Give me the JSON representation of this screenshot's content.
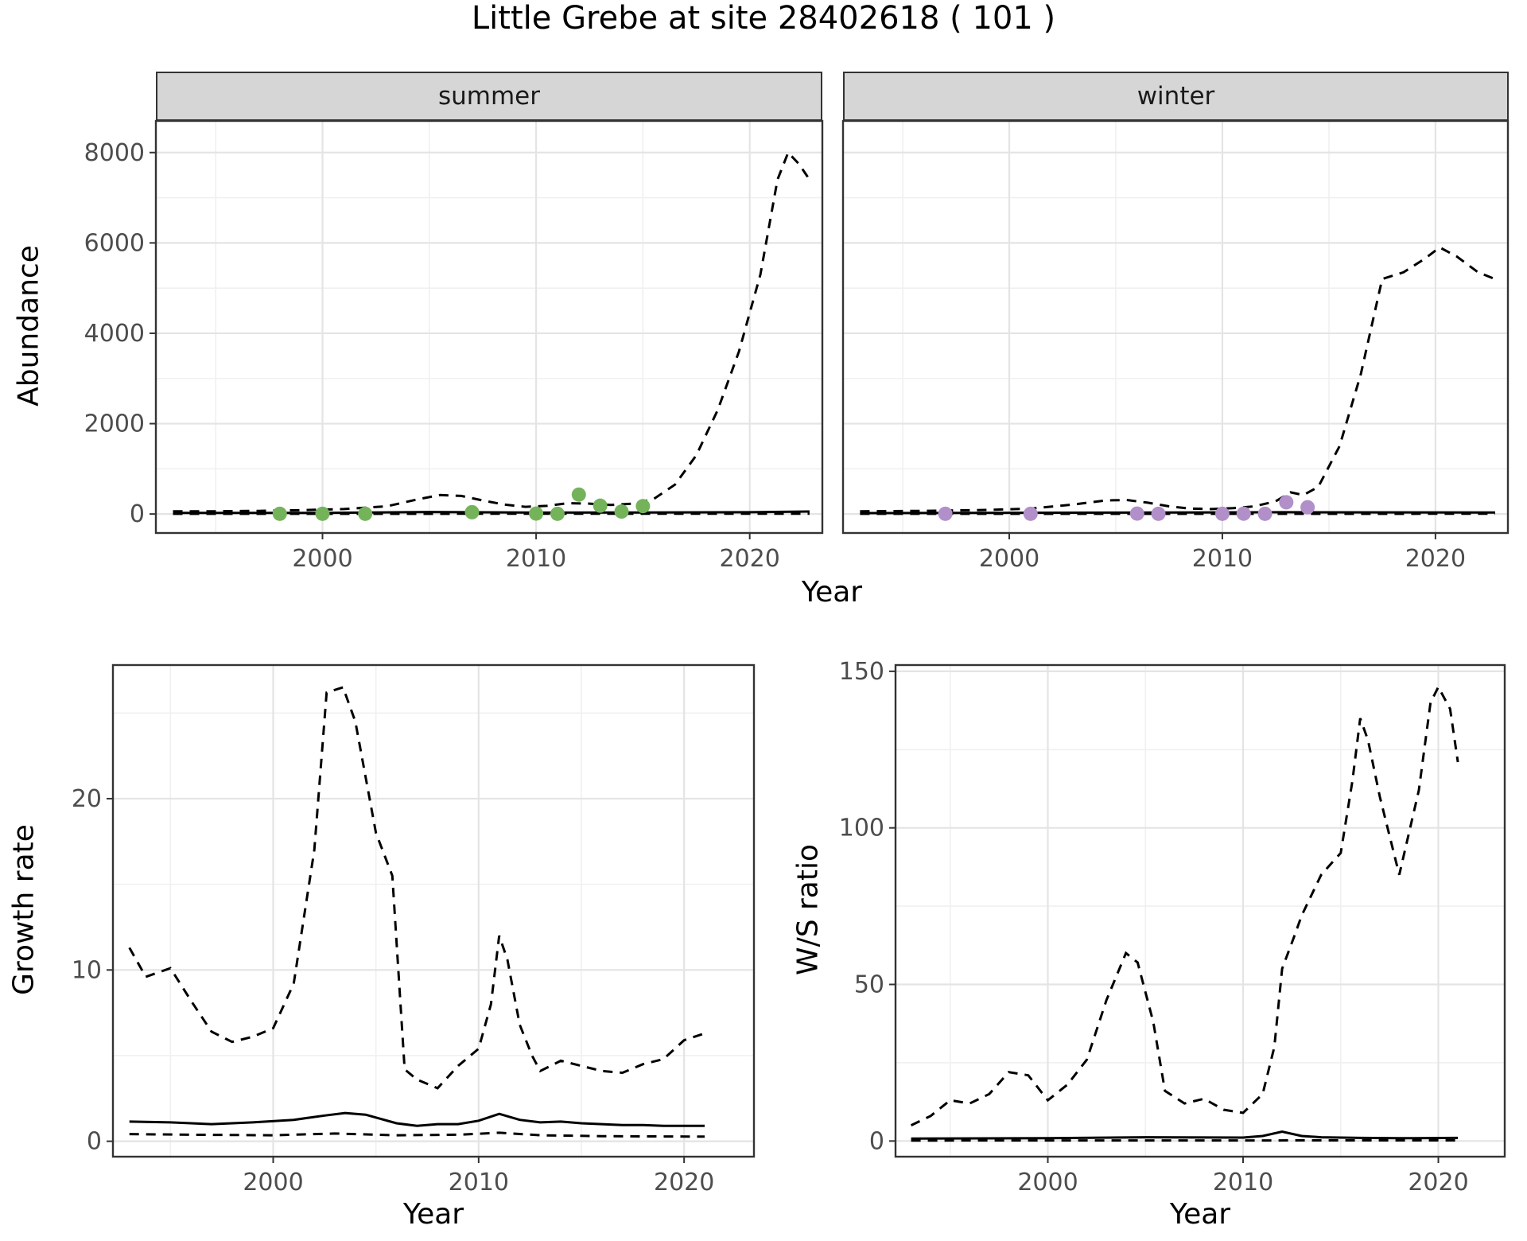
{
  "title": "Little Grebe at site 28402618 ( 101 )",
  "abundance": {
    "ylabel": "Abundance",
    "xlabel": "Year",
    "facets": [
      "summer",
      "winter"
    ]
  },
  "growth": {
    "ylabel": "Growth rate",
    "xlabel": "Year"
  },
  "ws": {
    "ylabel": "W/S ratio",
    "xlabel": "Year"
  },
  "colors": {
    "summer_points": "#75b35b",
    "winter_points": "#b18fc9",
    "line": "#000000",
    "strip_bg": "#d6d6d6",
    "grid_major": "#e4e4e4",
    "grid_minor": "#f0f0f0"
  },
  "chart_data": [
    {
      "type": "line",
      "title": "summer",
      "xlabel": "Year",
      "ylabel": "Abundance",
      "xlim": [
        1992.2,
        2023.4
      ],
      "ylim": [
        -420,
        8700
      ],
      "xticks": [
        2000,
        2010,
        2020
      ],
      "xticks_minor": [
        1995,
        2005,
        2015
      ],
      "yticks": [
        0,
        2000,
        4000,
        6000,
        8000
      ],
      "yticks_minor": [
        1000,
        3000,
        5000,
        7000
      ],
      "series": [
        {
          "name": "upper_95ci",
          "style": "dashed",
          "points": [
            [
              1993,
              60
            ],
            [
              1995,
              60
            ],
            [
              1997,
              70
            ],
            [
              1999,
              85
            ],
            [
              2001,
              110
            ],
            [
              2003,
              170
            ],
            [
              2004.5,
              330
            ],
            [
              2005.5,
              420
            ],
            [
              2006.5,
              400
            ],
            [
              2007.5,
              300
            ],
            [
              2008.5,
              210
            ],
            [
              2009.5,
              160
            ],
            [
              2010.5,
              180
            ],
            [
              2011.5,
              240
            ],
            [
              2012.5,
              230
            ],
            [
              2013.5,
              200
            ],
            [
              2014.5,
              230
            ],
            [
              2015.5,
              330
            ],
            [
              2016.5,
              650
            ],
            [
              2017.5,
              1300
            ],
            [
              2018.5,
              2300
            ],
            [
              2019.5,
              3600
            ],
            [
              2020.5,
              5300
            ],
            [
              2021.3,
              7400
            ],
            [
              2021.8,
              8000
            ],
            [
              2022.3,
              7750
            ],
            [
              2022.8,
              7400
            ]
          ]
        },
        {
          "name": "mean",
          "style": "solid",
          "points": [
            [
              1993,
              25
            ],
            [
              2000,
              25
            ],
            [
              2005,
              45
            ],
            [
              2010,
              30
            ],
            [
              2015,
              35
            ],
            [
              2020,
              40
            ],
            [
              2022.8,
              55
            ]
          ]
        },
        {
          "name": "lower_95ci",
          "style": "dashed",
          "points": [
            [
              1993,
              5
            ],
            [
              2022.8,
              8
            ]
          ]
        }
      ],
      "markers": {
        "name": "observed_counts_summer",
        "color": "#75b35b",
        "points": [
          [
            1998,
            5
          ],
          [
            2000,
            5
          ],
          [
            2002,
            5
          ],
          [
            2007,
            40
          ],
          [
            2010,
            10
          ],
          [
            2011,
            5
          ],
          [
            2012,
            430
          ],
          [
            2013,
            185
          ],
          [
            2014,
            55
          ],
          [
            2015,
            175
          ]
        ]
      }
    },
    {
      "type": "line",
      "title": "winter",
      "xlabel": "Year",
      "ylabel": "Abundance",
      "xlim": [
        1992.2,
        2023.4
      ],
      "ylim": [
        -420,
        8700
      ],
      "xticks": [
        2000,
        2010,
        2020
      ],
      "xticks_minor": [
        1995,
        2005,
        2015
      ],
      "yticks": [
        0,
        2000,
        4000,
        6000,
        8000
      ],
      "yticks_minor": [
        1000,
        3000,
        5000,
        7000
      ],
      "series": [
        {
          "name": "upper_95ci",
          "style": "dashed",
          "points": [
            [
              1993,
              60
            ],
            [
              1996,
              70
            ],
            [
              1999,
              90
            ],
            [
              2001,
              120
            ],
            [
              2003,
              210
            ],
            [
              2004.5,
              300
            ],
            [
              2005.5,
              310
            ],
            [
              2006.5,
              250
            ],
            [
              2007.5,
              170
            ],
            [
              2008.5,
              120
            ],
            [
              2009.5,
              110
            ],
            [
              2010.5,
              130
            ],
            [
              2011.5,
              170
            ],
            [
              2012.5,
              280
            ],
            [
              2013.2,
              480
            ],
            [
              2013.8,
              420
            ],
            [
              2014.5,
              600
            ],
            [
              2015.5,
              1500
            ],
            [
              2016.5,
              3100
            ],
            [
              2017.5,
              5200
            ],
            [
              2018.5,
              5350
            ],
            [
              2019.5,
              5650
            ],
            [
              2020.2,
              5900
            ],
            [
              2021,
              5700
            ],
            [
              2022,
              5350
            ],
            [
              2022.8,
              5200
            ]
          ]
        },
        {
          "name": "mean",
          "style": "solid",
          "points": [
            [
              1993,
              20
            ],
            [
              2005,
              30
            ],
            [
              2013,
              40
            ],
            [
              2022.8,
              35
            ]
          ]
        },
        {
          "name": "lower_95ci",
          "style": "dashed",
          "points": [
            [
              1993,
              5
            ],
            [
              2022.8,
              6
            ]
          ]
        }
      ],
      "markers": {
        "name": "observed_counts_winter",
        "color": "#b18fc9",
        "points": [
          [
            1997,
            5
          ],
          [
            2001,
            5
          ],
          [
            2006,
            10
          ],
          [
            2007,
            5
          ],
          [
            2010,
            5
          ],
          [
            2011,
            8
          ],
          [
            2012,
            5
          ],
          [
            2013,
            260
          ],
          [
            2014,
            150
          ]
        ]
      }
    },
    {
      "type": "line",
      "title": "Growth rate",
      "xlabel": "Year",
      "ylabel": "Growth rate",
      "xlim": [
        1992.2,
        2023.4
      ],
      "ylim": [
        -0.9,
        27.8
      ],
      "xticks": [
        2000,
        2010,
        2020
      ],
      "xticks_minor": [
        1995,
        2005,
        2015
      ],
      "yticks": [
        0,
        10,
        20
      ],
      "yticks_minor": [
        5,
        15,
        25
      ],
      "series": [
        {
          "name": "upper_95ci",
          "style": "dashed",
          "points": [
            [
              1993,
              11.3
            ],
            [
              1993.8,
              9.6
            ],
            [
              1995,
              10.1
            ],
            [
              1996,
              8.2
            ],
            [
              1997,
              6.4
            ],
            [
              1998,
              5.8
            ],
            [
              1999,
              6.1
            ],
            [
              2000,
              6.6
            ],
            [
              2001,
              9.2
            ],
            [
              2002,
              17
            ],
            [
              2002.6,
              26.2
            ],
            [
              2003.4,
              26.5
            ],
            [
              2004,
              24.5
            ],
            [
              2005,
              18
            ],
            [
              2005.8,
              15.5
            ],
            [
              2006.4,
              4.2
            ],
            [
              2007,
              3.6
            ],
            [
              2008,
              3.1
            ],
            [
              2009,
              4.4
            ],
            [
              2010,
              5.4
            ],
            [
              2010.6,
              8
            ],
            [
              2011,
              12
            ],
            [
              2011.4,
              10.6
            ],
            [
              2012,
              6.8
            ],
            [
              2012.6,
              5
            ],
            [
              2013,
              4.1
            ],
            [
              2014,
              4.7
            ],
            [
              2015,
              4.4
            ],
            [
              2016,
              4.1
            ],
            [
              2017,
              4.0
            ],
            [
              2018,
              4.5
            ],
            [
              2019,
              4.8
            ],
            [
              2020,
              5.9
            ],
            [
              2021,
              6.3
            ]
          ]
        },
        {
          "name": "mean",
          "style": "solid",
          "points": [
            [
              1993,
              1.15
            ],
            [
              1995,
              1.1
            ],
            [
              1997,
              1.0
            ],
            [
              1999,
              1.1
            ],
            [
              2001,
              1.25
            ],
            [
              2002.5,
              1.5
            ],
            [
              2003.5,
              1.65
            ],
            [
              2004.5,
              1.55
            ],
            [
              2006,
              1.05
            ],
            [
              2007,
              0.9
            ],
            [
              2008,
              1.0
            ],
            [
              2009,
              1.0
            ],
            [
              2010,
              1.2
            ],
            [
              2011,
              1.6
            ],
            [
              2012,
              1.25
            ],
            [
              2013,
              1.1
            ],
            [
              2014,
              1.15
            ],
            [
              2015,
              1.05
            ],
            [
              2016,
              1.0
            ],
            [
              2017,
              0.95
            ],
            [
              2018,
              0.95
            ],
            [
              2019,
              0.9
            ],
            [
              2020,
              0.9
            ],
            [
              2021,
              0.9
            ]
          ]
        },
        {
          "name": "lower_95ci",
          "style": "dashed",
          "points": [
            [
              1993,
              0.42
            ],
            [
              1996,
              0.38
            ],
            [
              2000,
              0.35
            ],
            [
              2003,
              0.45
            ],
            [
              2006,
              0.35
            ],
            [
              2009,
              0.38
            ],
            [
              2011,
              0.5
            ],
            [
              2013,
              0.35
            ],
            [
              2016,
              0.3
            ],
            [
              2019,
              0.28
            ],
            [
              2021,
              0.27
            ]
          ]
        }
      ]
    },
    {
      "type": "line",
      "title": "W/S ratio",
      "xlabel": "Year",
      "ylabel": "W/S ratio",
      "xlim": [
        1992.2,
        2023.4
      ],
      "ylim": [
        -5,
        152
      ],
      "xticks": [
        2000,
        2010,
        2020
      ],
      "xticks_minor": [
        1995,
        2005,
        2015
      ],
      "yticks": [
        0,
        50,
        100,
        150
      ],
      "yticks_minor": [
        25,
        75,
        125
      ],
      "series": [
        {
          "name": "upper_95ci",
          "style": "dashed",
          "points": [
            [
              1993,
              5
            ],
            [
              1994,
              8
            ],
            [
              1995,
              13
            ],
            [
              1996,
              12
            ],
            [
              1997,
              15
            ],
            [
              1998,
              22
            ],
            [
              1999,
              21
            ],
            [
              2000,
              13
            ],
            [
              2001,
              18
            ],
            [
              2002,
              26
            ],
            [
              2003,
              45
            ],
            [
              2004,
              60
            ],
            [
              2004.6,
              57
            ],
            [
              2005.4,
              38
            ],
            [
              2006,
              16
            ],
            [
              2007,
              12
            ],
            [
              2008,
              13.5
            ],
            [
              2009,
              10
            ],
            [
              2010,
              9
            ],
            [
              2011,
              15
            ],
            [
              2011.6,
              30
            ],
            [
              2012,
              55
            ],
            [
              2012.6,
              65
            ],
            [
              2013,
              72
            ],
            [
              2014,
              85
            ],
            [
              2015,
              92
            ],
            [
              2015.6,
              115
            ],
            [
              2016,
              135
            ],
            [
              2016.4,
              128
            ],
            [
              2017,
              110
            ],
            [
              2017.6,
              95
            ],
            [
              2018,
              85
            ],
            [
              2019,
              112
            ],
            [
              2019.6,
              140
            ],
            [
              2020,
              145
            ],
            [
              2020.6,
              138
            ],
            [
              2021,
              121
            ]
          ]
        },
        {
          "name": "mean",
          "style": "solid",
          "points": [
            [
              1993,
              0.8
            ],
            [
              2000,
              0.9
            ],
            [
              2005,
              1.2
            ],
            [
              2010,
              1.1
            ],
            [
              2011,
              1.6
            ],
            [
              2012,
              3
            ],
            [
              2013,
              1.6
            ],
            [
              2014,
              1.2
            ],
            [
              2016,
              1
            ],
            [
              2018,
              0.9
            ],
            [
              2021,
              1
            ]
          ]
        },
        {
          "name": "lower_95ci",
          "style": "dashed",
          "points": [
            [
              1993,
              0.15
            ],
            [
              2021,
              0.2
            ]
          ]
        }
      ]
    }
  ]
}
